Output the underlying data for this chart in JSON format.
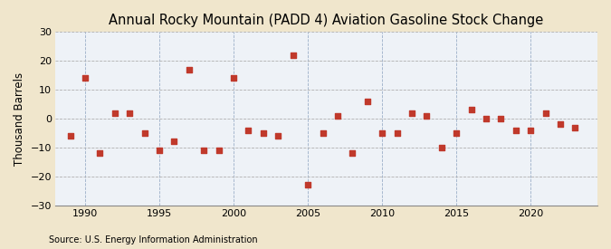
{
  "title": "Annual Rocky Mountain (PADD 4) Aviation Gasoline Stock Change",
  "ylabel": "Thousand Barrels",
  "source": "Source: U.S. Energy Information Administration",
  "years": [
    1989,
    1990,
    1991,
    1992,
    1993,
    1994,
    1995,
    1996,
    1997,
    1998,
    1999,
    2000,
    2001,
    2002,
    2003,
    2004,
    2005,
    2006,
    2007,
    2008,
    2009,
    2010,
    2011,
    2012,
    2013,
    2014,
    2015,
    2016,
    2017,
    2018,
    2019,
    2020,
    2021,
    2022,
    2023
  ],
  "values": [
    -6,
    14,
    -12,
    2,
    2,
    -5,
    -11,
    -8,
    17,
    -11,
    -11,
    14,
    -4,
    -5,
    -6,
    22,
    -23,
    -5,
    1,
    -12,
    6,
    -5,
    -5,
    2,
    1,
    -10,
    -5,
    3,
    0,
    0,
    -4,
    -4,
    2,
    -2,
    -3
  ],
  "marker_color": "#c0392b",
  "marker_size": 4,
  "fig_bg_color": "#f0e6cc",
  "plot_bg_color": "#eef2f7",
  "grid_color": "#9baec8",
  "grid_color_h": "#b0b0b0",
  "ylim": [
    -30,
    30
  ],
  "yticks": [
    -30,
    -20,
    -10,
    0,
    10,
    20,
    30
  ],
  "xlim": [
    1988.0,
    2024.5
  ],
  "xticks": [
    1990,
    1995,
    2000,
    2005,
    2010,
    2015,
    2020
  ],
  "title_fontsize": 10.5,
  "label_fontsize": 8.5,
  "tick_fontsize": 8,
  "source_fontsize": 7
}
